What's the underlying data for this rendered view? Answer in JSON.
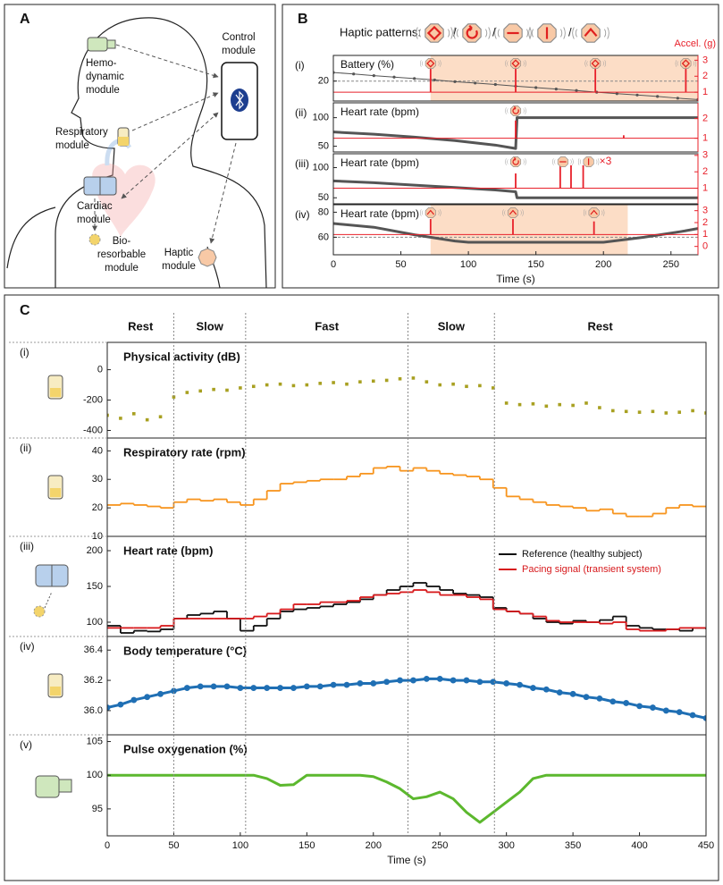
{
  "panel_letters": [
    "A",
    "B",
    "C"
  ],
  "module_labels": [
    [
      "Hemo-",
      "dynamic",
      "module"
    ],
    [
      "Control",
      "module"
    ],
    [
      "Respiratory",
      "module"
    ],
    [
      "Cardiac",
      "module"
    ],
    [
      "Bio-",
      "resorbable",
      "module"
    ],
    [
      "Haptic",
      "module"
    ]
  ],
  "haptic": {
    "title": "Haptic patterns:",
    "separator": "/",
    "accel_label": "Accel. (g)"
  },
  "activity_phases": {
    "names": [
      "Rest",
      "Slow",
      "Fast",
      "Slow",
      "Rest"
    ],
    "boundaries": [
      50,
      104,
      226,
      291
    ]
  },
  "chart_data": [
    {
      "type": "line",
      "label": "(i)",
      "title": "Battery (%)",
      "xlim": [
        0,
        270
      ],
      "ylim": [
        13,
        29
      ],
      "yticks": [
        20
      ],
      "y2lim": [
        0.45,
        3.3
      ],
      "y2ticks": [
        1,
        2,
        3
      ],
      "threshold": 20,
      "highlight": [
        72,
        270
      ],
      "series": [
        {
          "color": "#555555",
          "markers": true,
          "x": [
            0,
            15,
            30,
            45,
            60,
            75,
            90,
            105,
            120,
            135,
            150,
            165,
            180,
            195,
            210,
            225,
            240,
            255,
            270
          ],
          "values": [
            23,
            22.5,
            21.9,
            21.4,
            20.9,
            20.4,
            19.8,
            19.3,
            18.8,
            18.2,
            17.7,
            17.2,
            16.7,
            16.1,
            15.6,
            15.1,
            14.6,
            14,
            13.5
          ]
        },
        {
          "color": "#e8202a",
          "axis": "y2",
          "style": "spikes",
          "baseline": 1,
          "x": [
            72,
            135,
            194,
            261
          ],
          "values": [
            2.6,
            2.6,
            2.6,
            2.6
          ]
        }
      ],
      "icons": [
        {
          "x": 72,
          "pattern": 0
        },
        {
          "x": 135,
          "pattern": 0
        },
        {
          "x": 194,
          "pattern": 0
        },
        {
          "x": 261,
          "pattern": 0
        }
      ]
    },
    {
      "type": "line",
      "label": "(ii)",
      "title": "Heart rate (bpm)",
      "xlim": [
        0,
        270
      ],
      "ylim": [
        40,
        126
      ],
      "yticks": [
        50,
        100
      ],
      "y2lim": [
        0.3,
        2.8
      ],
      "y2ticks": [
        1,
        2
      ],
      "series": [
        {
          "color": "#555555",
          "x": [
            0,
            30,
            60,
            90,
            120,
            135,
            136,
            165,
            195,
            225,
            255,
            270
          ],
          "values": [
            75,
            71,
            66,
            60,
            52,
            46,
            100,
            100,
            100,
            100,
            100,
            100
          ]
        },
        {
          "color": "#e8202a",
          "axis": "y2",
          "style": "spikes",
          "baseline": 1,
          "x": [
            135,
            215
          ],
          "values": [
            1.9,
            1.15
          ]
        }
      ],
      "icons": [
        {
          "x": 135,
          "pattern": 1
        }
      ]
    },
    {
      "type": "line",
      "label": "(iii)",
      "title": "Heart rate (bpm)",
      "xlim": [
        0,
        270
      ],
      "ylim": [
        40,
        123
      ],
      "yticks": [
        50,
        100
      ],
      "y2lim": [
        0.05,
        3.1
      ],
      "y2ticks": [
        1,
        2,
        3
      ],
      "series": [
        {
          "color": "#555555",
          "x": [
            0,
            30,
            60,
            90,
            120,
            135,
            136,
            165,
            195,
            225,
            255,
            270
          ],
          "values": [
            78,
            75,
            71,
            67,
            63,
            60,
            50,
            50,
            50,
            50,
            50,
            50
          ]
        },
        {
          "color": "#e8202a",
          "axis": "y2",
          "style": "spikes",
          "baseline": 1,
          "x": [
            135,
            168,
            176,
            185
          ],
          "values": [
            1.9,
            2.4,
            2.4,
            2.4
          ]
        }
      ],
      "icons": [
        {
          "x": 135,
          "pattern": 1
        },
        {
          "x": 170,
          "pattern": 2
        },
        {
          "x": 189,
          "pattern": 3
        }
      ],
      "annotation": "×3"
    },
    {
      "type": "line",
      "label": "(iv)",
      "title": "Heart rate (bpm)",
      "xlim": [
        0,
        270
      ],
      "ylim": [
        46,
        86
      ],
      "yticks": [
        60,
        80
      ],
      "y2lim": [
        -0.7,
        3.5
      ],
      "y2ticks": [
        0,
        1,
        2,
        3
      ],
      "threshold": 60,
      "highlight": [
        72,
        218
      ],
      "series": [
        {
          "color": "#555555",
          "x": [
            0,
            30,
            60,
            90,
            100,
            200,
            230,
            260,
            270
          ],
          "values": [
            71,
            68,
            62,
            57,
            56,
            56,
            60,
            65,
            67
          ]
        },
        {
          "color": "#e8202a",
          "axis": "y2",
          "style": "spikes",
          "baseline": 1,
          "x": [
            72,
            133,
            193
          ],
          "values": [
            2.3,
            2.3,
            2.1
          ]
        }
      ],
      "icons": [
        {
          "x": 72,
          "pattern": 4
        },
        {
          "x": 133,
          "pattern": 4
        },
        {
          "x": 193,
          "pattern": 4
        }
      ],
      "xticks": [
        0,
        50,
        100,
        150,
        200,
        250
      ],
      "xlabel": "Time (s)"
    },
    {
      "type": "scatter",
      "label": "(i)",
      "title": "Physical activity (dB)",
      "xlim": [
        0,
        450
      ],
      "ylim": [
        -450,
        180
      ],
      "yticks": [
        -400,
        -200,
        0
      ],
      "x": [
        0,
        10,
        20,
        30,
        40,
        50,
        60,
        70,
        80,
        90,
        100,
        110,
        120,
        130,
        140,
        150,
        160,
        170,
        180,
        190,
        200,
        210,
        220,
        230,
        240,
        250,
        260,
        270,
        280,
        290,
        300,
        310,
        320,
        330,
        340,
        350,
        360,
        370,
        380,
        390,
        400,
        410,
        420,
        430,
        440,
        450
      ],
      "series": [
        {
          "color": "#a8a021",
          "values": [
            -300,
            -320,
            -290,
            -330,
            -310,
            -180,
            -150,
            -140,
            -130,
            -135,
            -120,
            -110,
            -100,
            -95,
            -105,
            -100,
            -90,
            -85,
            -95,
            -80,
            -75,
            -70,
            -60,
            -55,
            -80,
            -100,
            -95,
            -110,
            -105,
            -120,
            -220,
            -230,
            -225,
            -240,
            -230,
            -235,
            -220,
            -250,
            -270,
            -275,
            -280,
            -275,
            -285,
            -280,
            -270,
            -285
          ]
        }
      ]
    },
    {
      "type": "line",
      "step": true,
      "label": "(ii)",
      "title": "Respiratory rate (rpm)",
      "xlim": [
        0,
        450
      ],
      "ylim": [
        10,
        44.5
      ],
      "yticks": [
        10,
        20,
        30,
        40
      ],
      "x": [
        0,
        10,
        20,
        30,
        40,
        50,
        60,
        70,
        80,
        90,
        100,
        110,
        120,
        130,
        140,
        150,
        160,
        170,
        180,
        190,
        200,
        210,
        220,
        230,
        240,
        250,
        260,
        270,
        280,
        290,
        300,
        310,
        320,
        330,
        340,
        350,
        360,
        370,
        380,
        390,
        400,
        410,
        420,
        430,
        440,
        450
      ],
      "series": [
        {
          "color": "#f7941d",
          "values": [
            21,
            21.5,
            21,
            20.5,
            20,
            22,
            23,
            22.5,
            23,
            22,
            21,
            23,
            26,
            28.5,
            29,
            29.5,
            30,
            30,
            31,
            32,
            34,
            34.5,
            33,
            34,
            33,
            32,
            31.5,
            31,
            30,
            27,
            24,
            23,
            22,
            21,
            20.5,
            20,
            19,
            19.5,
            18,
            17,
            17,
            18,
            20,
            21,
            20.5,
            20.5
          ]
        }
      ]
    },
    {
      "type": "line",
      "step": true,
      "label": "(iii)",
      "title": "Heart rate (bpm)",
      "xlim": [
        0,
        450
      ],
      "ylim": [
        80,
        220
      ],
      "yticks": [
        100,
        150,
        200
      ],
      "legend": "upper right",
      "x": [
        0,
        10,
        20,
        30,
        40,
        50,
        60,
        70,
        80,
        90,
        100,
        110,
        120,
        130,
        140,
        150,
        160,
        170,
        180,
        190,
        200,
        210,
        220,
        230,
        240,
        250,
        260,
        270,
        280,
        290,
        300,
        310,
        320,
        330,
        340,
        350,
        360,
        370,
        380,
        390,
        400,
        410,
        420,
        430,
        440,
        450
      ],
      "series": [
        {
          "name": "Reference (healthy subject)",
          "color": "#111111",
          "values": [
            95,
            85,
            88,
            87,
            90,
            105,
            110,
            112,
            115,
            105,
            88,
            95,
            105,
            115,
            118,
            120,
            122,
            125,
            128,
            132,
            138,
            145,
            150,
            155,
            150,
            145,
            140,
            138,
            135,
            120,
            115,
            112,
            105,
            100,
            98,
            102,
            100,
            103,
            108,
            95,
            92,
            90,
            90,
            88,
            92,
            90
          ]
        },
        {
          "name": "Pacing signal (transient system)",
          "color": "#d7191c",
          "values": [
            92,
            92,
            92,
            92,
            95,
            105,
            105,
            105,
            105,
            105,
            105,
            108,
            112,
            118,
            125,
            125,
            128,
            128,
            130,
            135,
            138,
            140,
            142,
            145,
            142,
            138,
            138,
            135,
            132,
            118,
            115,
            112,
            108,
            102,
            100,
            100,
            100,
            98,
            100,
            90,
            88,
            88,
            90,
            92,
            92,
            92
          ]
        }
      ]
    },
    {
      "type": "line",
      "label": "(iv)",
      "title": "Body temperature (°C)",
      "xlim": [
        0,
        450
      ],
      "ylim": [
        35.84,
        36.49
      ],
      "yticks": [
        {
          "value": 36,
          "label": "36.0"
        },
        36.2,
        36.4
      ],
      "x": [
        0,
        10,
        20,
        30,
        40,
        50,
        60,
        70,
        80,
        90,
        100,
        110,
        120,
        130,
        140,
        150,
        160,
        170,
        180,
        190,
        200,
        210,
        220,
        230,
        240,
        250,
        260,
        270,
        280,
        290,
        300,
        310,
        320,
        330,
        340,
        350,
        360,
        370,
        380,
        390,
        400,
        410,
        420,
        430,
        440,
        450
      ],
      "series": [
        {
          "color": "#1f6fb4",
          "markers": true,
          "values": [
            36.02,
            36.04,
            36.07,
            36.09,
            36.11,
            36.13,
            36.15,
            36.16,
            36.16,
            36.16,
            36.15,
            36.15,
            36.15,
            36.15,
            36.15,
            36.16,
            36.16,
            36.17,
            36.17,
            36.18,
            36.18,
            36.19,
            36.2,
            36.2,
            36.21,
            36.21,
            36.2,
            36.2,
            36.19,
            36.19,
            36.18,
            36.17,
            36.15,
            36.14,
            36.12,
            36.11,
            36.09,
            36.08,
            36.06,
            36.05,
            36.03,
            36.02,
            36,
            35.99,
            35.97,
            35.95
          ]
        }
      ]
    },
    {
      "type": "line",
      "label": "(v)",
      "title": "Pulse oxygenation (%)",
      "xlim": [
        0,
        450
      ],
      "ylim": [
        91,
        106
      ],
      "yticks": [
        95,
        100,
        105
      ],
      "xticks": [
        0,
        50,
        100,
        150,
        200,
        250,
        300,
        350,
        400,
        450
      ],
      "xlabel": "Time (s)",
      "x": [
        0,
        10,
        20,
        30,
        40,
        50,
        60,
        70,
        80,
        90,
        100,
        110,
        120,
        130,
        140,
        150,
        160,
        170,
        180,
        190,
        200,
        210,
        220,
        230,
        240,
        250,
        260,
        270,
        280,
        290,
        300,
        310,
        320,
        330,
        340,
        350,
        360,
        370,
        380,
        390,
        400,
        410,
        420,
        430,
        440,
        450
      ],
      "series": [
        {
          "color": "#5cb82e",
          "values": [
            100,
            100,
            100,
            100,
            100,
            100,
            100,
            100,
            100,
            100,
            100,
            100,
            99.5,
            98.5,
            98.6,
            100,
            100,
            100,
            100,
            100,
            99.8,
            99,
            98,
            96.5,
            96.8,
            97.5,
            96.5,
            94.5,
            93,
            94.5,
            96,
            97.5,
            99.5,
            100,
            100,
            100,
            100,
            100,
            100,
            100,
            100,
            100,
            100,
            100,
            100,
            100
          ]
        }
      ]
    }
  ]
}
